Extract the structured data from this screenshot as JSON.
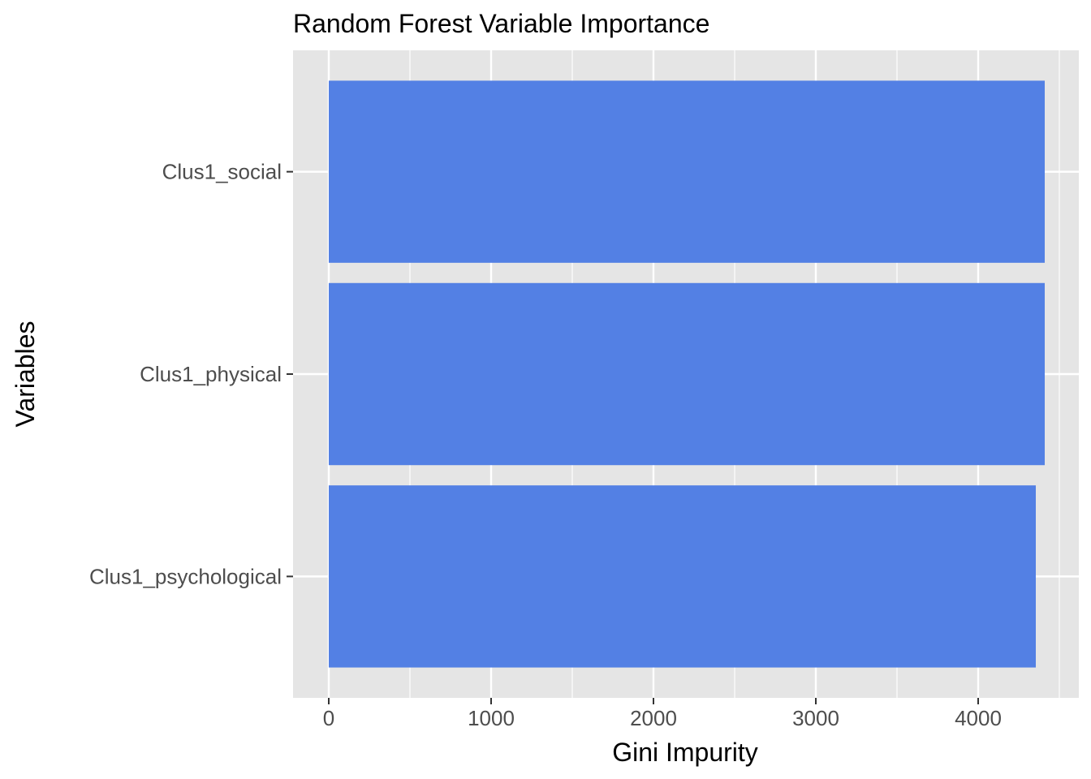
{
  "chart_data": {
    "type": "bar",
    "orientation": "horizontal",
    "title": "Random Forest Variable Importance",
    "xlabel": "Gini Impurity",
    "ylabel": "Variables",
    "categories": [
      "Clus1_social",
      "Clus1_physical",
      "Clus1_psychological"
    ],
    "values": [
      4410,
      4410,
      4355
    ],
    "xlim": [
      -220,
      4620
    ],
    "xticks": [
      0,
      1000,
      2000,
      3000,
      4000
    ],
    "grid": true,
    "bar_color": "#5380E4",
    "panel_color": "#E5E5E5",
    "grid_color": "#FFFFFF"
  }
}
